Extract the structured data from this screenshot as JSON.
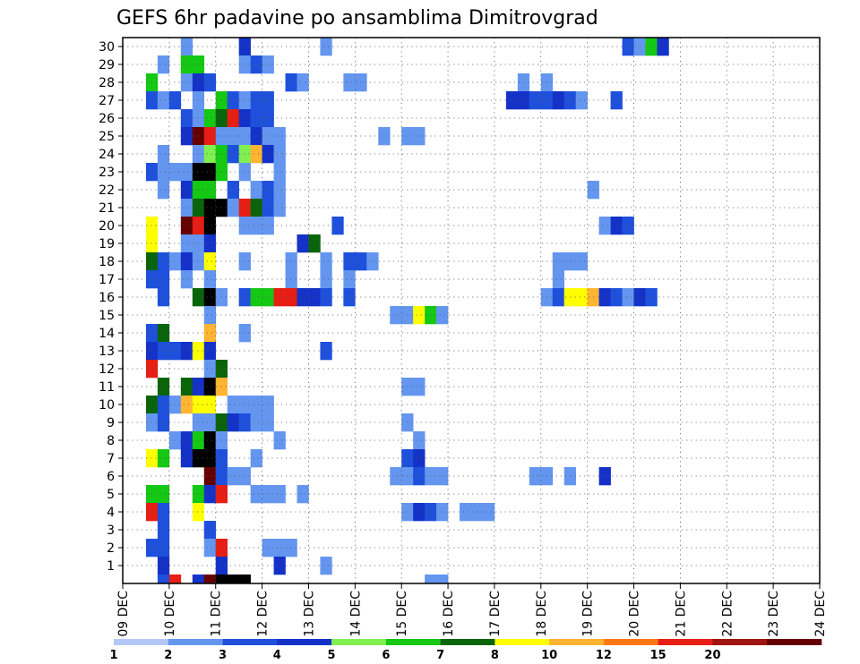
{
  "chart_data": {
    "type": "heatmap",
    "title": "GEFS 6hr padavine po ansamblima Dimitrovgrad",
    "x_ticks": [
      "09 DEC",
      "10 DEC",
      "11 DEC",
      "12 DEC",
      "13 DEC",
      "14 DEC",
      "15 DEC",
      "16 DEC",
      "17 DEC",
      "18 DEC",
      "19 DEC",
      "20 DEC",
      "21 DEC",
      "22 DEC",
      "23 DEC",
      "24 DEC"
    ],
    "y_ticks": [
      "1",
      "2",
      "3",
      "4",
      "5",
      "6",
      "7",
      "8",
      "9",
      "10",
      "11",
      "12",
      "13",
      "14",
      "15",
      "16",
      "17",
      "18",
      "19",
      "20",
      "21",
      "22",
      "23",
      "24",
      "25",
      "26",
      "27",
      "28",
      "29",
      "30"
    ],
    "x_unit": "6-hour step from 09 DEC 00Z",
    "grid": true,
    "colorbar": {
      "levels": [
        "1",
        "2",
        "3",
        "4",
        "5",
        "6",
        "7",
        "8",
        "10",
        "12",
        "15",
        "20"
      ],
      "colors": [
        "#b4c8f8",
        "#6496f0",
        "#1e50dc",
        "#1432c8",
        "#80f050",
        "#14c814",
        "#0a640a",
        "#ffff00",
        "#ffb432",
        "#ff7814",
        "#e61e14",
        "#a01414",
        "#640000"
      ]
    },
    "cells": [
      [
        5,
        30,
        1
      ],
      [
        10,
        30,
        3
      ],
      [
        17,
        30,
        1
      ],
      [
        43,
        30,
        2
      ],
      [
        44,
        30,
        1
      ],
      [
        45,
        30,
        5
      ],
      [
        46,
        30,
        3
      ],
      [
        3,
        29,
        1
      ],
      [
        5,
        29,
        5
      ],
      [
        6,
        29,
        5
      ],
      [
        10,
        29,
        1
      ],
      [
        11,
        29,
        2
      ],
      [
        12,
        29,
        1
      ],
      [
        2,
        28,
        5
      ],
      [
        5,
        28,
        1
      ],
      [
        6,
        28,
        3
      ],
      [
        7,
        28,
        2
      ],
      [
        14,
        28,
        2
      ],
      [
        15,
        28,
        1
      ],
      [
        19,
        28,
        1
      ],
      [
        20,
        28,
        1
      ],
      [
        34,
        28,
        1
      ],
      [
        36,
        28,
        1
      ],
      [
        2,
        27,
        2
      ],
      [
        3,
        27,
        1
      ],
      [
        4,
        27,
        2
      ],
      [
        6,
        27,
        1
      ],
      [
        8,
        27,
        5
      ],
      [
        9,
        27,
        2
      ],
      [
        10,
        27,
        1
      ],
      [
        11,
        27,
        2
      ],
      [
        12,
        27,
        2
      ],
      [
        33,
        27,
        3
      ],
      [
        34,
        27,
        3
      ],
      [
        35,
        27,
        2
      ],
      [
        36,
        27,
        2
      ],
      [
        37,
        27,
        3
      ],
      [
        38,
        27,
        2
      ],
      [
        39,
        27,
        1
      ],
      [
        42,
        27,
        2
      ],
      [
        5,
        26,
        2
      ],
      [
        6,
        26,
        1
      ],
      [
        7,
        26,
        5
      ],
      [
        8,
        26,
        6
      ],
      [
        9,
        26,
        10
      ],
      [
        10,
        26,
        3
      ],
      [
        11,
        26,
        2
      ],
      [
        12,
        26,
        2
      ],
      [
        5,
        25,
        3
      ],
      [
        6,
        25,
        12
      ],
      [
        7,
        25,
        10
      ],
      [
        8,
        25,
        1
      ],
      [
        9,
        25,
        1
      ],
      [
        10,
        25,
        1
      ],
      [
        11,
        25,
        3
      ],
      [
        12,
        25,
        1
      ],
      [
        13,
        25,
        1
      ],
      [
        22,
        25,
        1
      ],
      [
        24,
        25,
        1
      ],
      [
        25,
        25,
        1
      ],
      [
        3,
        24,
        1
      ],
      [
        6,
        24,
        1
      ],
      [
        7,
        24,
        4
      ],
      [
        8,
        24,
        5
      ],
      [
        9,
        24,
        2
      ],
      [
        10,
        24,
        4
      ],
      [
        11,
        24,
        8
      ],
      [
        12,
        24,
        3
      ],
      [
        13,
        24,
        1
      ],
      [
        2,
        23,
        2
      ],
      [
        3,
        23,
        1
      ],
      [
        4,
        23,
        1
      ],
      [
        5,
        23,
        1
      ],
      [
        6,
        23,
        15
      ],
      [
        7,
        23,
        20
      ],
      [
        8,
        23,
        5
      ],
      [
        10,
        23,
        1
      ],
      [
        13,
        23,
        1
      ],
      [
        3,
        22,
        1
      ],
      [
        5,
        22,
        3
      ],
      [
        6,
        22,
        5
      ],
      [
        7,
        22,
        5
      ],
      [
        9,
        22,
        2
      ],
      [
        11,
        22,
        1
      ],
      [
        12,
        22,
        2
      ],
      [
        13,
        22,
        1
      ],
      [
        40,
        22,
        1
      ],
      [
        5,
        21,
        1
      ],
      [
        6,
        21,
        6
      ],
      [
        7,
        21,
        15
      ],
      [
        8,
        21,
        15
      ],
      [
        9,
        21,
        1
      ],
      [
        10,
        21,
        10
      ],
      [
        11,
        21,
        6
      ],
      [
        12,
        21,
        2
      ],
      [
        13,
        21,
        1
      ],
      [
        2,
        20,
        7
      ],
      [
        5,
        20,
        12
      ],
      [
        6,
        20,
        10
      ],
      [
        7,
        20,
        15
      ],
      [
        10,
        20,
        1
      ],
      [
        11,
        20,
        1
      ],
      [
        12,
        20,
        1
      ],
      [
        18,
        20,
        2
      ],
      [
        41,
        20,
        1
      ],
      [
        42,
        20,
        3
      ],
      [
        43,
        20,
        2
      ],
      [
        2,
        19,
        7
      ],
      [
        5,
        19,
        1
      ],
      [
        6,
        19,
        1
      ],
      [
        7,
        19,
        3
      ],
      [
        15,
        19,
        3
      ],
      [
        16,
        19,
        6
      ],
      [
        2,
        18,
        6
      ],
      [
        3,
        18,
        2
      ],
      [
        4,
        18,
        1
      ],
      [
        5,
        18,
        3
      ],
      [
        6,
        18,
        1
      ],
      [
        7,
        18,
        7
      ],
      [
        10,
        18,
        1
      ],
      [
        14,
        18,
        1
      ],
      [
        17,
        18,
        1
      ],
      [
        19,
        18,
        2
      ],
      [
        20,
        18,
        2
      ],
      [
        21,
        18,
        1
      ],
      [
        37,
        18,
        1
      ],
      [
        38,
        18,
        1
      ],
      [
        39,
        18,
        1
      ],
      [
        2,
        17,
        2
      ],
      [
        3,
        17,
        2
      ],
      [
        5,
        17,
        1
      ],
      [
        7,
        17,
        1
      ],
      [
        14,
        17,
        1
      ],
      [
        17,
        17,
        1
      ],
      [
        19,
        17,
        1
      ],
      [
        37,
        17,
        1
      ],
      [
        3,
        16,
        2
      ],
      [
        6,
        16,
        6
      ],
      [
        7,
        16,
        15
      ],
      [
        8,
        16,
        1
      ],
      [
        10,
        16,
        2
      ],
      [
        11,
        16,
        5
      ],
      [
        12,
        16,
        5
      ],
      [
        13,
        16,
        10
      ],
      [
        14,
        16,
        10
      ],
      [
        15,
        16,
        3
      ],
      [
        16,
        16,
        3
      ],
      [
        17,
        16,
        2
      ],
      [
        19,
        16,
        2
      ],
      [
        36,
        16,
        1
      ],
      [
        37,
        16,
        2
      ],
      [
        38,
        16,
        7
      ],
      [
        39,
        16,
        7
      ],
      [
        40,
        16,
        8
      ],
      [
        41,
        16,
        3
      ],
      [
        42,
        16,
        2
      ],
      [
        43,
        16,
        1
      ],
      [
        44,
        16,
        3
      ],
      [
        45,
        16,
        2
      ],
      [
        7,
        15,
        1
      ],
      [
        23,
        15,
        1
      ],
      [
        24,
        15,
        1
      ],
      [
        25,
        15,
        7
      ],
      [
        26,
        15,
        5
      ],
      [
        27,
        15,
        1
      ],
      [
        2,
        14,
        2
      ],
      [
        3,
        14,
        6
      ],
      [
        7,
        14,
        8
      ],
      [
        10,
        14,
        1
      ],
      [
        2,
        13,
        3
      ],
      [
        3,
        13,
        2
      ],
      [
        4,
        13,
        2
      ],
      [
        5,
        13,
        3
      ],
      [
        6,
        13,
        7
      ],
      [
        7,
        13,
        3
      ],
      [
        17,
        13,
        2
      ],
      [
        2,
        12,
        10
      ],
      [
        7,
        12,
        1
      ],
      [
        8,
        12,
        6
      ],
      [
        3,
        11,
        6
      ],
      [
        5,
        11,
        6
      ],
      [
        6,
        11,
        3
      ],
      [
        7,
        11,
        20
      ],
      [
        8,
        11,
        8
      ],
      [
        24,
        11,
        1
      ],
      [
        25,
        11,
        1
      ],
      [
        2,
        10,
        6
      ],
      [
        3,
        10,
        2
      ],
      [
        4,
        10,
        1
      ],
      [
        5,
        10,
        8
      ],
      [
        6,
        10,
        7
      ],
      [
        7,
        10,
        7
      ],
      [
        9,
        10,
        1
      ],
      [
        10,
        10,
        1
      ],
      [
        11,
        10,
        1
      ],
      [
        12,
        10,
        1
      ],
      [
        2,
        9,
        1
      ],
      [
        3,
        9,
        2
      ],
      [
        6,
        9,
        1
      ],
      [
        7,
        9,
        1
      ],
      [
        8,
        9,
        6
      ],
      [
        9,
        9,
        3
      ],
      [
        10,
        9,
        2
      ],
      [
        11,
        9,
        1
      ],
      [
        12,
        9,
        1
      ],
      [
        24,
        9,
        1
      ],
      [
        4,
        8,
        1
      ],
      [
        5,
        8,
        3
      ],
      [
        6,
        8,
        5
      ],
      [
        7,
        8,
        15
      ],
      [
        8,
        8,
        1
      ],
      [
        13,
        8,
        1
      ],
      [
        25,
        8,
        1
      ],
      [
        2,
        7,
        7
      ],
      [
        3,
        7,
        5
      ],
      [
        5,
        7,
        3
      ],
      [
        6,
        7,
        15
      ],
      [
        7,
        7,
        20
      ],
      [
        8,
        7,
        2
      ],
      [
        11,
        7,
        1
      ],
      [
        24,
        7,
        2
      ],
      [
        25,
        7,
        3
      ],
      [
        7,
        6,
        12
      ],
      [
        8,
        6,
        2
      ],
      [
        9,
        6,
        1
      ],
      [
        10,
        6,
        1
      ],
      [
        23,
        6,
        1
      ],
      [
        24,
        6,
        1
      ],
      [
        25,
        6,
        2
      ],
      [
        26,
        6,
        1
      ],
      [
        27,
        6,
        1
      ],
      [
        35,
        6,
        1
      ],
      [
        36,
        6,
        1
      ],
      [
        38,
        6,
        1
      ],
      [
        41,
        6,
        3
      ],
      [
        2,
        5,
        5
      ],
      [
        3,
        5,
        5
      ],
      [
        6,
        5,
        5
      ],
      [
        7,
        5,
        3
      ],
      [
        8,
        5,
        10
      ],
      [
        11,
        5,
        1
      ],
      [
        12,
        5,
        1
      ],
      [
        13,
        5,
        1
      ],
      [
        15,
        5,
        1
      ],
      [
        2,
        4,
        10
      ],
      [
        3,
        4,
        2
      ],
      [
        6,
        4,
        7
      ],
      [
        24,
        4,
        1
      ],
      [
        25,
        4,
        3
      ],
      [
        26,
        4,
        2
      ],
      [
        27,
        4,
        1
      ],
      [
        29,
        4,
        1
      ],
      [
        30,
        4,
        1
      ],
      [
        31,
        4,
        1
      ],
      [
        3,
        3,
        2
      ],
      [
        7,
        3,
        2
      ],
      [
        2,
        2,
        2
      ],
      [
        3,
        2,
        2
      ],
      [
        7,
        2,
        1
      ],
      [
        8,
        2,
        10
      ],
      [
        12,
        2,
        1
      ],
      [
        13,
        2,
        1
      ],
      [
        14,
        2,
        1
      ],
      [
        3,
        1,
        3
      ],
      [
        8,
        1,
        3
      ],
      [
        13,
        1,
        3
      ],
      [
        17,
        1,
        1
      ],
      [
        3,
        0,
        2
      ],
      [
        4,
        0,
        10
      ],
      [
        6,
        0,
        3
      ],
      [
        7,
        0,
        12
      ],
      [
        8,
        0,
        20
      ],
      [
        9,
        0,
        15
      ],
      [
        10,
        0,
        20
      ],
      [
        26,
        0,
        1
      ],
      [
        27,
        0,
        1
      ]
    ]
  }
}
